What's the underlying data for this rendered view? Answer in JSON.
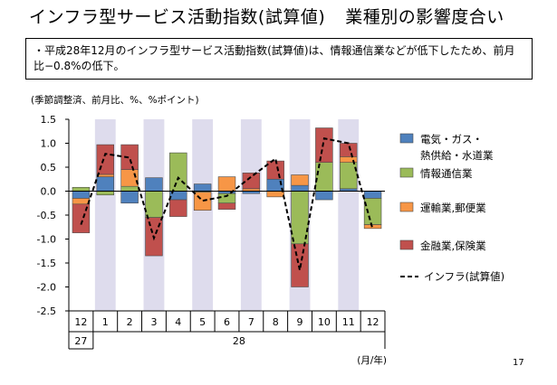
{
  "slide": {
    "title": "インフラ型サービス活動指数(試算値)",
    "subtitle": "業種別の影響度合い",
    "summary": "・平成28年12月のインフラ型サービス活動指数(試算値)は、情報通信業などが低下したため、前月比−0.8%の低下。",
    "page_number": "17"
  },
  "chart_data": {
    "type": "bar",
    "stacked": true,
    "unit_label": "(季節調整済、前月比、%、%ポイント)",
    "x_axis_note": "(月/年)",
    "categories": [
      "12",
      "1",
      "2",
      "3",
      "4",
      "5",
      "6",
      "7",
      "8",
      "9",
      "10",
      "11",
      "12"
    ],
    "year_labels": [
      {
        "label": "27",
        "from": 0,
        "to": 0
      },
      {
        "label": "28",
        "from": 1,
        "to": 12
      }
    ],
    "ylim": [
      -2.5,
      1.5
    ],
    "yticks": [
      1.5,
      1.0,
      0.5,
      0.0,
      -0.5,
      -1.0,
      -1.5,
      -2.0,
      -2.5
    ],
    "ytick_labels": [
      "1.5",
      "1.0",
      "0.5",
      "0.0",
      "-0.5",
      "-1.0",
      "-1.5",
      "-2.0",
      "-2.5"
    ],
    "shaded_bands": [
      1,
      3,
      5,
      7,
      9,
      11
    ],
    "band_color": "#dedced",
    "series": [
      {
        "name": "電気・ガス・熱供給・水道業",
        "name_lines": [
          "電気・ガス・",
          "熱供給・水道業"
        ],
        "color": "#4f81bd",
        "values": [
          -0.15,
          0.3,
          -0.25,
          0.28,
          -0.18,
          0.15,
          -0.05,
          -0.05,
          0.25,
          0.12,
          -0.18,
          0.05,
          -0.15
        ]
      },
      {
        "name": "情報通信業",
        "name_lines": [
          "情報通信業"
        ],
        "color": "#9bbb59",
        "values": [
          0.08,
          -0.08,
          0.1,
          -0.55,
          0.8,
          -0.02,
          -0.2,
          0.0,
          0.0,
          -1.1,
          0.6,
          0.55,
          -0.55
        ]
      },
      {
        "name": "運輸業,郵便業",
        "name_lines": [
          "運輸業,郵便業"
        ],
        "color": "#f79646",
        "values": [
          -0.12,
          0.05,
          0.35,
          0.0,
          0.0,
          -0.38,
          0.3,
          0.05,
          -0.12,
          0.22,
          0.0,
          0.12,
          -0.08
        ]
      },
      {
        "name": "金融業,保険業",
        "name_lines": [
          "金融業,保険業"
        ],
        "color": "#c0504d",
        "values": [
          -0.6,
          0.62,
          0.52,
          -0.8,
          -0.35,
          0.0,
          -0.13,
          0.33,
          0.38,
          -0.9,
          0.72,
          0.28,
          0.0
        ]
      }
    ],
    "line": {
      "name": "インフラ(試算値)",
      "color": "#000000",
      "values": [
        -0.7,
        0.78,
        0.7,
        -0.98,
        0.28,
        -0.2,
        -0.1,
        0.3,
        0.68,
        -1.65,
        1.1,
        1.0,
        -0.8
      ]
    }
  }
}
